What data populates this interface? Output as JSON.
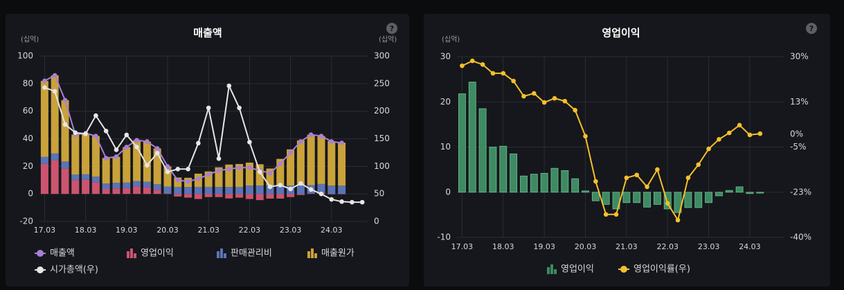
{
  "chart_data": [
    {
      "type": "combo",
      "title": "매출액",
      "help_icon": "?",
      "y_unit": "(십억)",
      "y2_unit": "(십억)",
      "categories": [
        "17.03",
        null,
        null,
        null,
        "18.03",
        null,
        null,
        null,
        "19.03",
        null,
        null,
        null,
        "20.03",
        null,
        null,
        null,
        "21.03",
        null,
        null,
        null,
        "22.03",
        null,
        null,
        null,
        "23.03",
        null,
        null,
        null,
        "24.03",
        null,
        null,
        null
      ],
      "ylim": [
        -20,
        100
      ],
      "yticks": [
        -20,
        0,
        20,
        40,
        60,
        80,
        100
      ],
      "y2lim": [
        0,
        300
      ],
      "y2ticks": [
        0,
        50,
        100,
        150,
        200,
        250,
        300
      ],
      "grid": true,
      "series": [
        {
          "name": "매출액",
          "type": "line",
          "axis": "y",
          "color": "#a97fd6",
          "values": [
            82,
            86,
            68,
            43,
            44,
            42,
            26,
            27,
            34,
            39,
            38,
            33,
            20,
            10,
            9,
            11,
            14,
            17,
            18,
            19,
            19,
            17,
            15,
            22,
            30,
            38,
            43,
            42,
            38,
            37,
            null,
            null
          ]
        },
        {
          "name": "영업이익",
          "type": "bar",
          "axis": "y",
          "color": "#cc5470",
          "values": [
            21.8,
            24.4,
            18.5,
            10,
            10.2,
            8.5,
            3.6,
            4,
            4.2,
            5.3,
            4.8,
            3,
            0.3,
            -1.9,
            -2.7,
            -3.7,
            -2.3,
            -2.3,
            -3.3,
            -2.7,
            -3.7,
            -4.5,
            -3.4,
            -3.4,
            -2.3,
            -0.8,
            0.4,
            1.2,
            -0.3,
            -0.2,
            null,
            null
          ]
        },
        {
          "name": "판매관리비",
          "type": "bar",
          "axis": "y",
          "color": "#5a74b8",
          "values": [
            5,
            5,
            5,
            4,
            4,
            4,
            4,
            4,
            4,
            4,
            4,
            4,
            5,
            5,
            5,
            5,
            5,
            5,
            5,
            5,
            6,
            6,
            6,
            6,
            6,
            6,
            6,
            6,
            6,
            6,
            null,
            null
          ]
        },
        {
          "name": "매출원가",
          "type": "bar",
          "axis": "y",
          "color": "#c9a23a",
          "values": [
            55.2,
            56.6,
            44.5,
            29,
            29.8,
            29.5,
            18.4,
            19,
            25.8,
            29.7,
            29.2,
            26,
            14.7,
            6.9,
            6.7,
            9.7,
            11.3,
            14.3,
            16.3,
            16.7,
            16.7,
            15.5,
            12.4,
            19.4,
            26.3,
            32.8,
            36.6,
            34.8,
            32.3,
            31.2,
            null,
            null
          ]
        },
        {
          "name": "시가총액(우)",
          "type": "line",
          "axis": "y2",
          "color": "#e6e6e6",
          "values": [
            243,
            236,
            176,
            161,
            159,
            192,
            164,
            130,
            157,
            135,
            102,
            124,
            90,
            95,
            95,
            142,
            206,
            114,
            246,
            206,
            144,
            90,
            63,
            66,
            59,
            69,
            58,
            50,
            40,
            36,
            35,
            35
          ]
        }
      ]
    },
    {
      "type": "combo",
      "title": "영업이익",
      "help_icon": "?",
      "y_unit": "(십억)",
      "categories": [
        "17.03",
        null,
        null,
        null,
        "18.03",
        null,
        null,
        null,
        "19.03",
        null,
        null,
        null,
        "20.03",
        null,
        null,
        null,
        "21.03",
        null,
        null,
        null,
        "22.03",
        null,
        null,
        null,
        "23.03",
        null,
        null,
        null,
        "24.03",
        null
      ],
      "ylim": [
        -10,
        30
      ],
      "yticks": [
        -10,
        0,
        10,
        20,
        30
      ],
      "y2lim": [
        -40,
        30
      ],
      "y2ticks": [
        {
          "value": 30,
          "label": "30%"
        },
        {
          "value": 12.5,
          "label": "13%"
        },
        {
          "value": 0,
          "label": "0%"
        },
        {
          "value": -5,
          "label": "-5%"
        },
        {
          "value": -22.5,
          "label": "-23%"
        },
        {
          "value": -40,
          "label": "-40%"
        }
      ],
      "grid": true,
      "series": [
        {
          "name": "영업이익",
          "type": "bar",
          "axis": "y",
          "color": "#3f8a63",
          "values": [
            21.8,
            24.4,
            18.5,
            10,
            10.2,
            8.5,
            3.6,
            4,
            4.2,
            5.3,
            4.8,
            3,
            0.3,
            -1.9,
            -2.7,
            -3.7,
            -2.3,
            -2.3,
            -3.3,
            -2.7,
            -3.7,
            -4.5,
            -3.4,
            -3.4,
            -2.3,
            -0.8,
            0.4,
            1.2,
            -0.3,
            -0.2
          ]
        },
        {
          "name": "영업이익률(우)",
          "type": "line",
          "axis": "y2",
          "color": "#f5c02b",
          "values": [
            26.5,
            28.4,
            27,
            23.6,
            23.6,
            20.6,
            14.7,
            15.8,
            12.3,
            13.9,
            12.8,
            9.3,
            -0.8,
            -18.3,
            -31.1,
            -31.1,
            -16.9,
            -15.8,
            -20.4,
            -13.7,
            -26.8,
            -33.3,
            -16.9,
            -11.8,
            -5.7,
            -2,
            0.5,
            3.5,
            -0.3,
            0.2
          ]
        }
      ]
    }
  ]
}
